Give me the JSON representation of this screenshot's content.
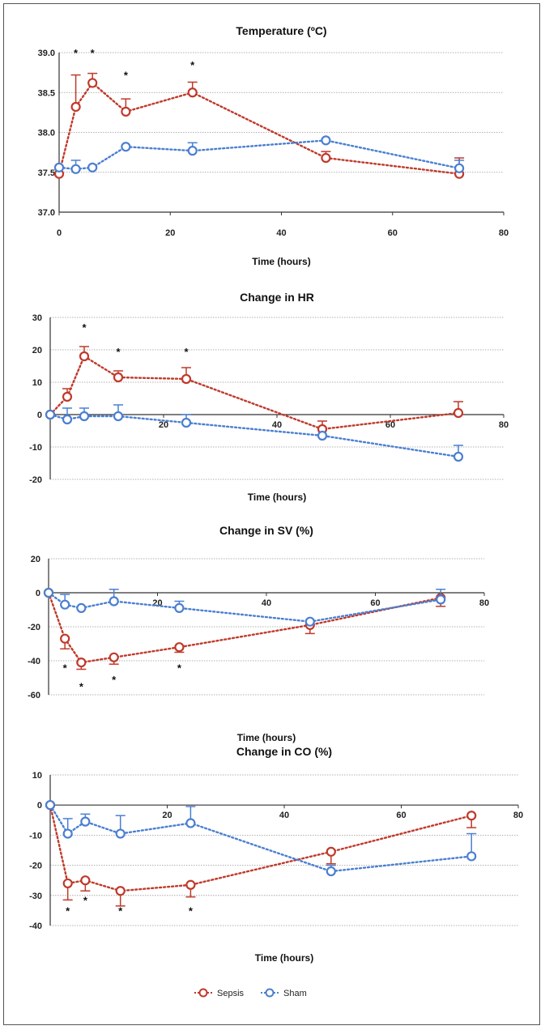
{
  "colors": {
    "sepsis": "#c0392b",
    "sham": "#4a7fd1",
    "grid": "#999999"
  },
  "legend": [
    {
      "name": "Sepsis",
      "color": "#c0392b"
    },
    {
      "name": "Sham",
      "color": "#4a7fd1"
    }
  ],
  "chart_data": [
    {
      "type": "line",
      "title": "Temperature (ºC)",
      "xlabel": "Time (hours)",
      "ylabel": "",
      "xlim": [
        0,
        80
      ],
      "ylim": [
        37.0,
        39.0
      ],
      "xticks": [
        "0",
        "20",
        "40",
        "60",
        "80"
      ],
      "yticks": [
        "37.0",
        "37.5",
        "38.0",
        "38.5",
        "39.0"
      ],
      "grid": true,
      "series": [
        {
          "name": "Sepsis",
          "x": [
            0,
            3,
            6,
            12,
            24,
            48,
            72
          ],
          "y": [
            37.48,
            38.32,
            38.62,
            38.26,
            38.5,
            37.68,
            37.48
          ],
          "err": [
            0,
            0.4,
            0.12,
            0.16,
            0.13,
            0.08,
            0.2
          ]
        },
        {
          "name": "Sham",
          "x": [
            0,
            3,
            6,
            12,
            24,
            48,
            72
          ],
          "y": [
            37.56,
            37.54,
            37.56,
            37.82,
            37.77,
            37.9,
            37.55
          ],
          "err": [
            0,
            0.11,
            0,
            0,
            0.1,
            0,
            0.1
          ]
        }
      ],
      "stars": [
        {
          "x": 3,
          "y": 39.0,
          "label": "*"
        },
        {
          "x": 6,
          "y": 39.0,
          "label": "*"
        },
        {
          "x": 12,
          "y": 38.72,
          "label": "*"
        },
        {
          "x": 24,
          "y": 38.85,
          "label": "*"
        }
      ]
    },
    {
      "type": "line",
      "title": "Change in HR",
      "xlabel": "Time (hours)",
      "ylabel": "",
      "xlim": [
        0,
        80
      ],
      "ylim": [
        -20,
        30
      ],
      "xticks": [
        "20",
        "40",
        "60",
        "80"
      ],
      "yticks": [
        "-20",
        "-10",
        "0",
        "10",
        "20",
        "30"
      ],
      "grid": true,
      "series": [
        {
          "name": "Sepsis",
          "x": [
            0,
            3,
            6,
            12,
            24,
            48,
            72
          ],
          "y": [
            0,
            5.5,
            18,
            11.5,
            11,
            -4.5,
            0.5
          ],
          "err": [
            0,
            2.5,
            3,
            2,
            3.5,
            2.5,
            3.5
          ]
        },
        {
          "name": "Sham",
          "x": [
            0,
            3,
            6,
            12,
            24,
            48,
            72
          ],
          "y": [
            0,
            -1.5,
            -0.5,
            -0.5,
            -2.5,
            -6.5,
            -13
          ],
          "err": [
            0,
            3.5,
            2.5,
            3.5,
            2.5,
            0,
            3.5
          ]
        }
      ],
      "stars": [
        {
          "x": 6,
          "y": 27,
          "label": "*"
        },
        {
          "x": 12,
          "y": 19.5,
          "label": "*"
        },
        {
          "x": 24,
          "y": 19.5,
          "label": "*"
        }
      ]
    },
    {
      "type": "line",
      "title": "Change in SV (%)",
      "xlabel": "Time (hours)",
      "ylabel": "",
      "xlim": [
        0,
        80
      ],
      "ylim": [
        -60,
        20
      ],
      "xticks": [
        "20",
        "40",
        "60",
        "80"
      ],
      "yticks": [
        "-60",
        "-40",
        "-20",
        "0",
        "20"
      ],
      "grid": true,
      "series": [
        {
          "name": "Sepsis",
          "x": [
            0,
            3,
            6,
            12,
            24,
            48,
            72
          ],
          "y": [
            0,
            -27,
            -41,
            -38,
            -32,
            -19,
            -3
          ],
          "err": [
            0,
            6,
            4,
            4,
            3,
            5,
            5
          ]
        },
        {
          "name": "Sham",
          "x": [
            0,
            3,
            6,
            12,
            24,
            48,
            72
          ],
          "y": [
            0,
            -7,
            -9,
            -5,
            -9,
            -17,
            -4
          ],
          "err": [
            0,
            6,
            0,
            7,
            4,
            0,
            6
          ]
        }
      ],
      "stars": [
        {
          "x": 3,
          "y": -44,
          "label": "*"
        },
        {
          "x": 6,
          "y": -55,
          "label": "*"
        },
        {
          "x": 12,
          "y": -51,
          "label": "*"
        },
        {
          "x": 24,
          "y": -44,
          "label": "*"
        }
      ]
    },
    {
      "type": "line",
      "title": "Change in CO (%)",
      "xlabel": "Time (hours)",
      "ylabel": "",
      "xlim": [
        0,
        80
      ],
      "ylim": [
        -40,
        10
      ],
      "xticks": [
        "20",
        "40",
        "60",
        "80"
      ],
      "yticks": [
        "-40",
        "-30",
        "-20",
        "-10",
        "0",
        "10"
      ],
      "grid": true,
      "series": [
        {
          "name": "Sepsis",
          "x": [
            0,
            3,
            6,
            12,
            24,
            48,
            72
          ],
          "y": [
            0,
            -26,
            -25,
            -28.5,
            -26.5,
            -15.5,
            -3.5
          ],
          "err": [
            0,
            5.5,
            3.5,
            5,
            4,
            4,
            4
          ]
        },
        {
          "name": "Sham",
          "x": [
            0,
            3,
            6,
            12,
            24,
            48,
            72
          ],
          "y": [
            0,
            -9.5,
            -5.5,
            -9.5,
            -6,
            -22,
            -17
          ],
          "err": [
            0,
            5,
            2.5,
            6,
            5.5,
            2,
            7.5
          ]
        }
      ],
      "stars": [
        {
          "x": 3,
          "y": -35,
          "label": "*"
        },
        {
          "x": 6,
          "y": -31.5,
          "label": "*"
        },
        {
          "x": 12,
          "y": -35,
          "label": "*"
        },
        {
          "x": 24,
          "y": -35,
          "label": "*"
        }
      ]
    }
  ]
}
